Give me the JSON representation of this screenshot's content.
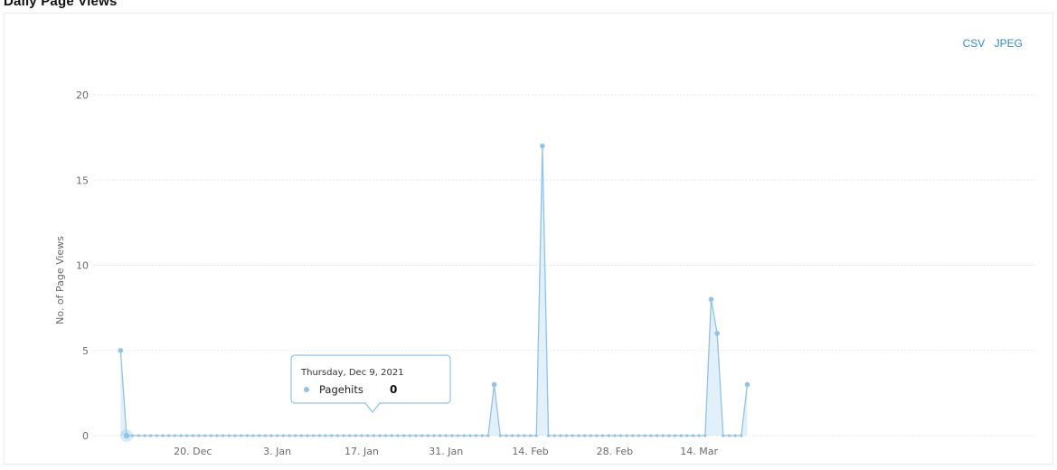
{
  "page": {
    "title": "Daily Page Views"
  },
  "exports": {
    "csv_label": "CSV",
    "jpeg_label": "JPEG"
  },
  "colors": {
    "series": "#8fc4e8",
    "link": "#2d8ad8"
  },
  "tooltip": {
    "date": "Thursday, Dec 9, 2021",
    "series": "Pagehits",
    "value": "0"
  },
  "chart_data": {
    "type": "area",
    "ylabel": "No. of Page Views",
    "xlabel": "",
    "ylim": [
      0,
      20
    ],
    "yticks": [
      0,
      5,
      10,
      15,
      20
    ],
    "grid": true,
    "start_date": "2021-12-09",
    "xticks": [
      {
        "label": "20. Dec",
        "date": "2021-12-20"
      },
      {
        "label": "3. Jan",
        "date": "2022-01-03"
      },
      {
        "label": "17. Jan",
        "date": "2022-01-17"
      },
      {
        "label": "31. Jan",
        "date": "2022-01-31"
      },
      {
        "label": "14. Feb",
        "date": "2022-02-14"
      },
      {
        "label": "28. Feb",
        "date": "2022-02-28"
      },
      {
        "label": "14. Mar",
        "date": "2022-03-14"
      }
    ],
    "series": [
      {
        "name": "Pagehits",
        "values": [
          {
            "date": "2021-12-08",
            "value": 5
          },
          {
            "date": "2021-12-09",
            "value": 0
          },
          {
            "date": "2022-02-07",
            "value": 0
          },
          {
            "date": "2022-02-08",
            "value": 3
          },
          {
            "date": "2022-02-09",
            "value": 0
          },
          {
            "date": "2022-02-15",
            "value": 0
          },
          {
            "date": "2022-02-16",
            "value": 17
          },
          {
            "date": "2022-02-17",
            "value": 0
          },
          {
            "date": "2022-03-15",
            "value": 0
          },
          {
            "date": "2022-03-16",
            "value": 8
          },
          {
            "date": "2022-03-17",
            "value": 6
          },
          {
            "date": "2022-03-18",
            "value": 0
          },
          {
            "date": "2022-03-21",
            "value": 0
          },
          {
            "date": "2022-03-22",
            "value": 3
          }
        ]
      }
    ]
  }
}
